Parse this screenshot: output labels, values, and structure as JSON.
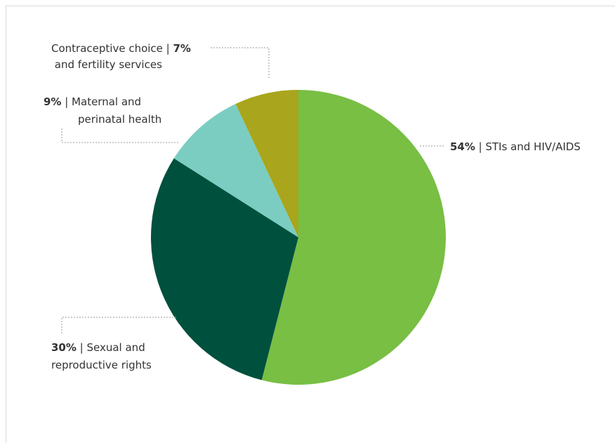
{
  "chart_data": {
    "type": "pie",
    "title": "",
    "slices": [
      {
        "label": "STIs and HIV/AIDS",
        "pct_text": "54%",
        "value": 54,
        "color": "#78bf44"
      },
      {
        "label": "Sexual and reproductive rights",
        "pct_text": "30%",
        "value": 30,
        "color": "#00503e"
      },
      {
        "label": "Maternal and perinatal health",
        "pct_text": "9%",
        "value": 9,
        "color": "#7bcdc1"
      },
      {
        "label": "Contraceptive choice and fertility services",
        "pct_text": "7%",
        "value": 7,
        "color": "#a9a51c"
      }
    ],
    "annotations": {
      "stis": {
        "pct": "54%",
        "text": " | STIs and HIV/AIDS"
      },
      "sexual": {
        "pct": "30%",
        "line1": " | Sexual and",
        "line2": "reproductive rights"
      },
      "maternal": {
        "pct": "9%",
        "line1": " | Maternal and",
        "line2": "perinatal health"
      },
      "contraceptive": {
        "line1": "Contraceptive choice | ",
        "pct": "7%",
        "line2": " and fertility services"
      }
    }
  }
}
